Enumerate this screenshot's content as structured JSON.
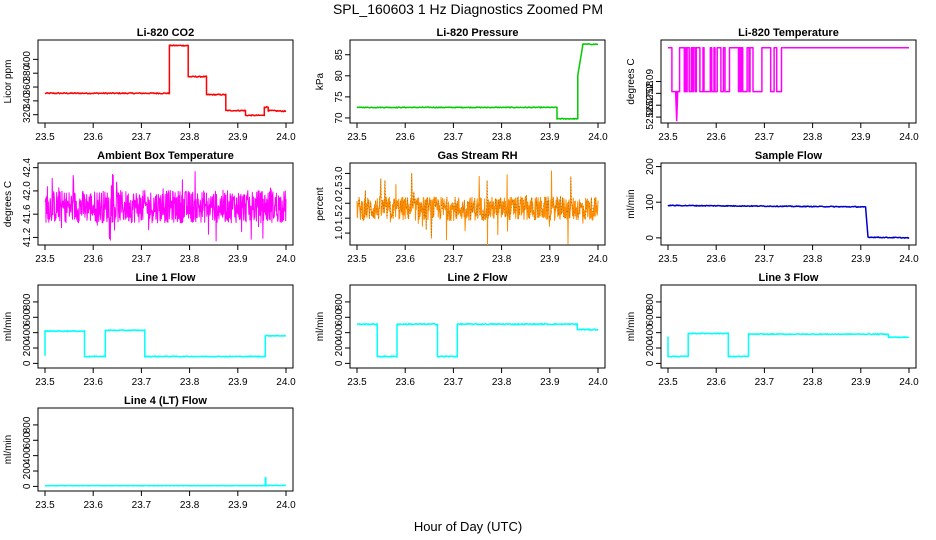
{
  "title": "SPL_160603  1 Hz Diagnostics Zoomed PM",
  "xlabel": "Hour of Day (UTC)",
  "chart_data": [
    {
      "type": "line",
      "title": "Li-820 CO2",
      "ylabel": "Licor ppm",
      "color": "#ff0000",
      "noise": 0.8,
      "xlim": [
        23.5,
        24.0
      ],
      "xticks": [
        23.5,
        23.6,
        23.7,
        23.8,
        23.9,
        24.0
      ],
      "xtick_labels": [
        "23.5",
        "23.6",
        "23.7",
        "23.8",
        "23.9",
        "24.0"
      ],
      "ylim": [
        308,
        428
      ],
      "yticks": [
        320,
        340,
        360,
        380,
        400
      ],
      "ytick_labels": [
        "320",
        "340",
        "360",
        "380",
        "400"
      ],
      "series": [
        {
          "name": "CO2",
          "x": [
            23.5,
            23.758,
            23.758,
            23.797,
            23.797,
            23.835,
            23.835,
            23.875,
            23.875,
            23.916,
            23.916,
            23.955,
            23.955,
            23.963,
            23.963,
            24.0
          ],
          "y": [
            351,
            351,
            420,
            420,
            375,
            375,
            349,
            349,
            326,
            326,
            319,
            319,
            331,
            331,
            326,
            325
          ]
        }
      ]
    },
    {
      "type": "line",
      "title": "Li-820 Pressure",
      "ylabel": "kPa",
      "color": "#00cc00",
      "noise": 0.1,
      "xlim": [
        23.5,
        24.0
      ],
      "xticks": [
        23.5,
        23.6,
        23.7,
        23.8,
        23.9,
        24.0
      ],
      "xtick_labels": [
        "23.5",
        "23.6",
        "23.7",
        "23.8",
        "23.9",
        "24.0"
      ],
      "ylim": [
        68.8,
        88.5
      ],
      "yticks": [
        70,
        75,
        80,
        85
      ],
      "ytick_labels": [
        "70",
        "75",
        "80",
        "85"
      ],
      "series": [
        {
          "name": "Pressure",
          "x": [
            23.5,
            23.915,
            23.915,
            23.958,
            23.958,
            23.968,
            23.968,
            24.0
          ],
          "y": [
            72.5,
            72.5,
            69.8,
            69.8,
            80,
            87,
            87.5,
            87.5
          ]
        }
      ]
    },
    {
      "type": "line",
      "title": "Li-820 Temperature",
      "ylabel": "degrees C",
      "color": "#ff00ff",
      "noise": 0.0,
      "xlim": [
        23.5,
        24.0
      ],
      "xticks": [
        23.5,
        23.6,
        23.7,
        23.8,
        23.9,
        24.0
      ],
      "xtick_labels": [
        "23.5",
        "23.6",
        "23.7",
        "23.8",
        "23.9",
        "24.0"
      ],
      "ylim": [
        52.055,
        52.125
      ],
      "yticks": [
        52.06,
        52.07,
        52.08,
        52.09
      ],
      "ytick_labels": [
        "52.06",
        "52.07",
        "52.08",
        "52.09"
      ],
      "levels": [
        52.0815,
        52.1185
      ],
      "switch_until": 23.74,
      "spike": {
        "x": 23.518,
        "y": 52.057
      },
      "series": [
        {
          "name": "Temperature",
          "x": [
            23.74,
            24.0
          ],
          "y": [
            52.1185,
            52.1185
          ]
        }
      ]
    },
    {
      "type": "line",
      "title": "Ambient Box Temperature",
      "ylabel": "degrees C",
      "color": "#ff00ff",
      "noise": 0.0,
      "xlim": [
        23.5,
        24.0
      ],
      "xticks": [
        23.5,
        23.6,
        23.7,
        23.8,
        23.9,
        24.0
      ],
      "xtick_labels": [
        "23.5",
        "23.6",
        "23.7",
        "23.8",
        "23.9",
        "24.0"
      ],
      "ylim": [
        41.07,
        42.48
      ],
      "yticks": [
        41.2,
        41.6,
        42.0,
        42.4
      ],
      "ytick_labels": [
        "41.2",
        "41.6",
        "42.0",
        "42.4"
      ],
      "band": {
        "center": 41.73,
        "amp": 0.28,
        "spike": 0.62
      },
      "series": [
        {
          "name": "Box Temperature",
          "x": [
            23.5,
            24.0
          ],
          "y": [
            41.73,
            41.73
          ]
        }
      ]
    },
    {
      "type": "line",
      "title": "Gas Stream RH",
      "ylabel": "percent",
      "color": "#ff8c00",
      "noise": 0.0,
      "xlim": [
        23.5,
        24.0
      ],
      "xticks": [
        23.5,
        23.6,
        23.7,
        23.8,
        23.9,
        24.0
      ],
      "xtick_labels": [
        "23.5",
        "23.6",
        "23.7",
        "23.8",
        "23.9",
        "24.0"
      ],
      "ylim": [
        0.6,
        3.35
      ],
      "yticks": [
        1.0,
        1.5,
        2.0,
        2.5,
        3.0
      ],
      "ytick_labels": [
        "1.0",
        "1.5",
        "2.0",
        "2.5",
        "3.0"
      ],
      "band": {
        "center": 1.82,
        "amp": 0.4,
        "spike": 1.3
      },
      "series": [
        {
          "name": "RH",
          "x": [
            23.5,
            24.0
          ],
          "y": [
            1.82,
            1.82
          ]
        }
      ]
    },
    {
      "type": "line",
      "title": "Sample Flow",
      "ylabel": "ml/min",
      "color": "#0000cc",
      "noise": 1.2,
      "xlim": [
        23.5,
        24.0
      ],
      "xticks": [
        23.5,
        23.6,
        23.7,
        23.8,
        23.9,
        24.0
      ],
      "xtick_labels": [
        "23.5",
        "23.6",
        "23.7",
        "23.8",
        "23.9",
        "24.0"
      ],
      "ylim": [
        -20,
        210
      ],
      "yticks": [
        0,
        100,
        200
      ],
      "ytick_labels": [
        "0",
        "100",
        "200"
      ],
      "series": [
        {
          "name": "Sample Flow",
          "x": [
            23.5,
            23.9,
            23.91,
            23.915,
            24.0
          ],
          "y": [
            91,
            87,
            86,
            2,
            0
          ]
        }
      ]
    },
    {
      "type": "line",
      "title": "Line 1 Flow",
      "ylabel": "ml/min",
      "color": "#00ffff",
      "noise": 6,
      "xlim": [
        23.5,
        24.0
      ],
      "xticks": [
        23.5,
        23.6,
        23.7,
        23.8,
        23.9,
        24.0
      ],
      "xtick_labels": [
        "23.5",
        "23.6",
        "23.7",
        "23.8",
        "23.9",
        "24.0"
      ],
      "ylim": [
        -60,
        1020
      ],
      "yticks": [
        0,
        200,
        400,
        600,
        800
      ],
      "ytick_labels": [
        "0",
        "200",
        "400",
        "600",
        "800"
      ],
      "series": [
        {
          "name": "Line 1",
          "x": [
            23.5,
            23.5,
            23.503,
            23.582,
            23.582,
            23.625,
            23.625,
            23.707,
            23.707,
            23.957,
            23.957,
            24.0
          ],
          "y": [
            100,
            420,
            420,
            420,
            90,
            90,
            430,
            430,
            90,
            90,
            360,
            360
          ]
        }
      ]
    },
    {
      "type": "line",
      "title": "Line 2 Flow",
      "ylabel": "ml/min",
      "color": "#00ffff",
      "noise": 8,
      "xlim": [
        23.5,
        24.0
      ],
      "xticks": [
        23.5,
        23.6,
        23.7,
        23.8,
        23.9,
        24.0
      ],
      "xtick_labels": [
        "23.5",
        "23.6",
        "23.7",
        "23.8",
        "23.9",
        "24.0"
      ],
      "ylim": [
        -60,
        1020
      ],
      "yticks": [
        0,
        200,
        400,
        600,
        800
      ],
      "ytick_labels": [
        "0",
        "200",
        "400",
        "600",
        "800"
      ],
      "series": [
        {
          "name": "Line 2",
          "x": [
            23.5,
            23.542,
            23.542,
            23.583,
            23.583,
            23.667,
            23.667,
            23.708,
            23.708,
            23.957,
            23.957,
            24.0
          ],
          "y": [
            510,
            510,
            90,
            90,
            510,
            510,
            90,
            90,
            510,
            510,
            440,
            440
          ]
        }
      ]
    },
    {
      "type": "line",
      "title": "Line 3 Flow",
      "ylabel": "ml/min",
      "color": "#00ffff",
      "noise": 6,
      "xlim": [
        23.5,
        24.0
      ],
      "xticks": [
        23.5,
        23.6,
        23.7,
        23.8,
        23.9,
        24.0
      ],
      "xtick_labels": [
        "23.5",
        "23.6",
        "23.7",
        "23.8",
        "23.9",
        "24.0"
      ],
      "ylim": [
        -60,
        1020
      ],
      "yticks": [
        0,
        200,
        400,
        600,
        800
      ],
      "ytick_labels": [
        "0",
        "200",
        "400",
        "600",
        "800"
      ],
      "series": [
        {
          "name": "Line 3",
          "x": [
            23.5,
            23.5,
            23.503,
            23.542,
            23.542,
            23.625,
            23.625,
            23.667,
            23.667,
            23.957,
            23.957,
            24.0
          ],
          "y": [
            350,
            90,
            90,
            90,
            390,
            390,
            90,
            90,
            380,
            380,
            340,
            340
          ]
        }
      ]
    },
    {
      "type": "line",
      "title": "Line 4 (LT) Flow",
      "ylabel": "ml/min",
      "color": "#00ffff",
      "noise": 2,
      "xlim": [
        23.5,
        24.0
      ],
      "xticks": [
        23.5,
        23.6,
        23.7,
        23.8,
        23.9,
        24.0
      ],
      "xtick_labels": [
        "23.5",
        "23.6",
        "23.7",
        "23.8",
        "23.9",
        "24.0"
      ],
      "ylim": [
        -60,
        1020
      ],
      "yticks": [
        0,
        200,
        400,
        600,
        800
      ],
      "ytick_labels": [
        "0",
        "200",
        "400",
        "600",
        "800"
      ],
      "series": [
        {
          "name": "Line 4",
          "x": [
            23.5,
            23.957,
            23.957,
            23.958,
            23.958,
            24.0
          ],
          "y": [
            10,
            10,
            110,
            110,
            12,
            12
          ]
        }
      ]
    }
  ]
}
